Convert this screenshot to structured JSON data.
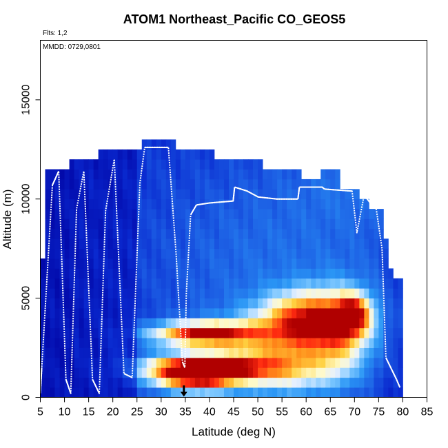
{
  "chart_data": {
    "type": "heatmap",
    "title": "ATOM1 Northeast_Pacific CO_GEOS5",
    "subtitle": "Flts: 1,2",
    "annotation": "MMDD: 0729,0801",
    "xlabel": "Latitude (deg N)",
    "ylabel": "Altitude (m)",
    "xlim": [
      5,
      85
    ],
    "ylim": [
      0,
      18000
    ],
    "xticks": [
      5,
      10,
      15,
      20,
      25,
      30,
      35,
      40,
      45,
      50,
      55,
      60,
      65,
      70,
      75,
      80,
      85
    ],
    "yticks": [
      0,
      5000,
      10000,
      15000
    ],
    "xtick_labels": [
      "5",
      "10",
      "15",
      "20",
      "25",
      "30",
      "35",
      "40",
      "45",
      "50",
      "55",
      "60",
      "65",
      "70",
      "75",
      "80",
      "85"
    ],
    "ytick_labels": [
      "0",
      "5000",
      "10000",
      "15000"
    ],
    "grid": false,
    "colorscale": [
      "#0000a0",
      "#0a2ad0",
      "#1e64e6",
      "#2a96f5",
      "#7ec8ff",
      "#e6f0ff",
      "#fffac8",
      "#ffd040",
      "#ff8c1a",
      "#ff2a10",
      "#b00000"
    ],
    "heatmap_cells_note": "",
    "flight_track": {
      "color": "#ffffff",
      "lat": [
        5,
        5.3,
        7.5,
        8.8,
        10.3,
        11.3,
        12.5,
        14,
        15.8,
        17.2,
        18.5,
        20.3,
        22.3,
        24,
        25.6,
        26.6,
        31.5,
        33.1,
        34.4,
        34.9,
        35.2,
        36.1,
        37.3,
        40,
        44.9,
        45.2,
        47.8,
        50.1,
        53.9,
        58.3,
        58.6,
        63.3,
        63.8,
        69.5,
        70.5,
        72,
        73.6,
        74.5,
        75.7,
        76.5,
        78.7,
        79.4
      ],
      "alt": [
        200,
        1500,
        10700,
        11400,
        900,
        200,
        9500,
        11400,
        900,
        200,
        9400,
        12000,
        1200,
        1000,
        10800,
        12600,
        12600,
        7200,
        1800,
        1500,
        5200,
        9200,
        9700,
        9800,
        9900,
        10600,
        10400,
        10100,
        10000,
        10000,
        10600,
        10600,
        10500,
        10400,
        8300,
        10200,
        9700,
        9500,
        7500,
        2000,
        900,
        500
      ]
    },
    "marker_arrow_lat": 34.7,
    "data_grid": {
      "x": [
        5,
        6,
        7,
        8,
        9,
        10,
        11,
        12,
        13,
        14,
        15,
        16,
        17,
        18,
        19,
        20,
        21,
        22,
        23,
        24,
        25,
        26,
        27,
        28,
        29,
        30,
        31,
        32,
        33,
        34,
        35,
        36,
        37,
        38,
        39,
        40,
        41,
        42,
        43,
        44,
        45,
        46,
        47,
        48,
        49,
        50,
        51,
        52,
        53,
        54,
        55,
        56,
        57,
        58,
        59,
        60,
        61,
        62,
        63,
        64,
        65,
        66,
        67,
        68,
        69,
        70,
        71,
        72,
        73,
        74,
        75,
        76,
        77,
        78,
        79,
        80
      ],
      "y": [
        0,
        500,
        1000,
        1500,
        2000,
        2500,
        3000,
        3500,
        4000,
        4500,
        5000,
        5500,
        6000,
        6500,
        7000,
        7500,
        8000,
        8500,
        9000,
        9500,
        10000,
        10500,
        11000,
        11500,
        12000,
        12500,
        13000
      ],
      "value_range": [
        50,
        180
      ],
      "value_units": ""
    }
  }
}
